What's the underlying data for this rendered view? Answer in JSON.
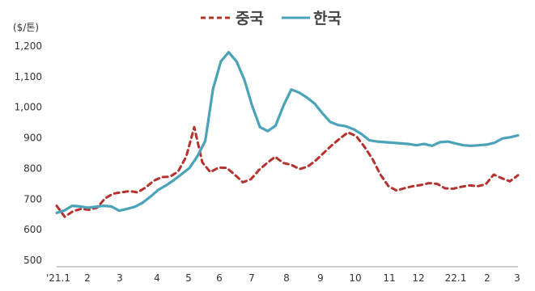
{
  "chart_data": {
    "type": "line",
    "title": "",
    "unit_label": "($/톤)",
    "xlabel": "",
    "ylabel": "",
    "ylim": [
      500,
      1200
    ],
    "yticks": [
      500,
      600,
      700,
      800,
      900,
      1000,
      1100,
      1200
    ],
    "ytick_labels": [
      "500",
      "600",
      "700",
      "800",
      "900",
      "1,000",
      "1,100",
      "1,200"
    ],
    "xtick_labels": [
      "'21.1",
      "2",
      "3",
      "4",
      "5",
      "6",
      "7",
      "8",
      "9",
      "10",
      "11",
      "12",
      "22.1",
      "2",
      "3"
    ],
    "grid": false,
    "legend": {
      "position": "top-center"
    },
    "series": [
      {
        "name": "중국",
        "style": "dashed",
        "color": "#b5322e",
        "values": [
          678,
          642,
          660,
          668,
          665,
          672,
          703,
          718,
          722,
          726,
          722,
          738,
          760,
          772,
          773,
          790,
          838,
          935,
          820,
          788,
          803,
          802,
          780,
          755,
          765,
          795,
          818,
          838,
          818,
          812,
          798,
          806,
          826,
          851,
          876,
          898,
          918,
          906,
          872,
          832,
          780,
          742,
          728,
          736,
          742,
          746,
          752,
          750,
          735,
          734,
          740,
          745,
          742,
          748,
          780,
          768,
          758,
          778
        ]
      },
      {
        "name": "한국",
        "style": "solid",
        "color": "#4aa3b8",
        "values": [
          655,
          663,
          678,
          676,
          672,
          675,
          678,
          676,
          662,
          668,
          675,
          688,
          708,
          730,
          745,
          762,
          782,
          802,
          840,
          890,
          1060,
          1150,
          1180,
          1150,
          1090,
          1005,
          935,
          922,
          940,
          1005,
          1058,
          1048,
          1032,
          1012,
          980,
          952,
          942,
          938,
          928,
          912,
          892,
          888,
          886,
          884,
          882,
          880,
          876,
          880,
          874,
          886,
          888,
          882,
          876,
          874,
          876,
          878,
          884,
          898,
          902,
          908
        ]
      }
    ]
  },
  "colors": {
    "china": "#b5322e",
    "korea": "#4aa3b8",
    "axis": "#999999"
  }
}
